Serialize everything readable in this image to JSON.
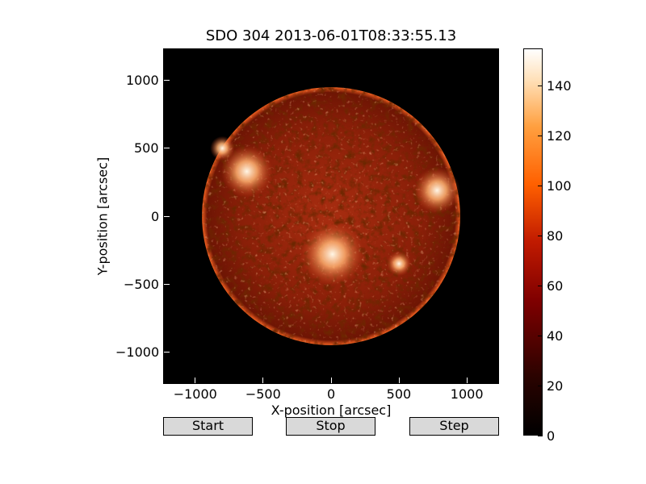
{
  "title": "SDO 304 2013-06-01T08:33:55.13",
  "xlabel": "X-position [arcsec]",
  "ylabel": "Y-position [arcsec]",
  "x_ticks": [
    "−1000",
    "−500",
    "0",
    "500",
    "1000"
  ],
  "y_ticks": [
    "1000",
    "500",
    "0",
    "−500",
    "−1000"
  ],
  "colorbar": {
    "ticks": [
      "140",
      "120",
      "100",
      "80",
      "60",
      "40",
      "20",
      "0"
    ]
  },
  "buttons": {
    "start": "Start",
    "stop": "Stop",
    "step": "Step"
  },
  "colors": {
    "plot_bg": "#000000",
    "button_bg": "#d9d9d9"
  },
  "chart_data": {
    "type": "heatmap",
    "title": "SDO 304 2013-06-01T08:33:55.13",
    "xlabel": "X-position [arcsec]",
    "ylabel": "Y-position [arcsec]",
    "xlim": [
      -1230,
      1230
    ],
    "ylim": [
      -1230,
      1230
    ],
    "x_tick_values": [
      -1000,
      -500,
      0,
      500,
      1000
    ],
    "y_tick_values": [
      1000,
      500,
      0,
      -500,
      -1000
    ],
    "colorbar_range": [
      0,
      155
    ],
    "colormap": "sdoaia304",
    "solar_disk": {
      "center_arcsec": [
        0,
        0
      ],
      "radius_arcsec": 950
    },
    "bright_regions_arcsec": [
      {
        "x": -620,
        "y": 330,
        "radius": 190
      },
      {
        "x": 780,
        "y": 190,
        "radius": 170
      },
      {
        "x": 10,
        "y": -280,
        "radius": 230
      },
      {
        "x": 500,
        "y": -350,
        "radius": 90
      },
      {
        "x": -800,
        "y": 500,
        "radius": 90
      }
    ]
  }
}
